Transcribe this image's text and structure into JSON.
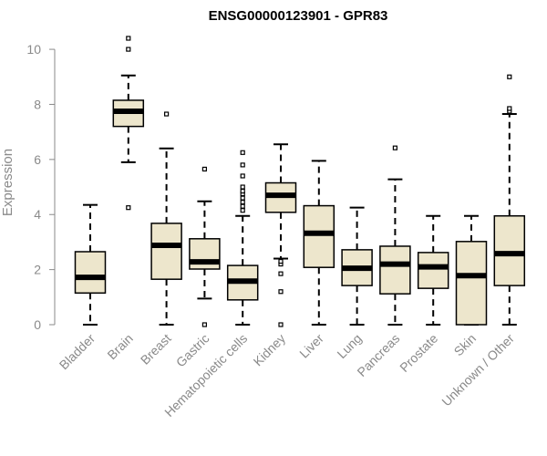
{
  "chart_data": {
    "type": "box",
    "title": "ENSG00000123901 - GPR83",
    "xlabel": "",
    "ylabel": "Expression",
    "ylim": [
      0,
      10.4
    ],
    "yticks": [
      0,
      2,
      4,
      6,
      8,
      10
    ],
    "grid": false,
    "colors": {
      "box_fill": "#ede6cc",
      "box_stroke": "#000000",
      "axis": "#8a8a8a"
    },
    "categories": [
      "Bladder",
      "Brain",
      "Breast",
      "Gastric",
      "Hematopoietic cells",
      "Kidney",
      "Liver",
      "Lung",
      "Pancreas",
      "Prostate",
      "Skin",
      "Unknown / Other"
    ],
    "boxes": [
      {
        "category": "Bladder",
        "whisker_low": 0.0,
        "q1": 1.15,
        "median": 1.72,
        "q3": 2.65,
        "whisker_high": 4.35,
        "outliers": []
      },
      {
        "category": "Brain",
        "whisker_low": 5.9,
        "q1": 7.2,
        "median": 7.75,
        "q3": 8.15,
        "whisker_high": 9.05,
        "outliers": [
          4.25,
          10.0,
          10.4
        ]
      },
      {
        "category": "Breast",
        "whisker_low": 0.0,
        "q1": 1.65,
        "median": 2.88,
        "q3": 3.68,
        "whisker_high": 6.4,
        "outliers": [
          7.65
        ]
      },
      {
        "category": "Gastric",
        "whisker_low": 0.95,
        "q1": 2.02,
        "median": 2.28,
        "q3": 3.12,
        "whisker_high": 4.48,
        "outliers": [
          0.0,
          5.65
        ]
      },
      {
        "category": "Hematopoietic cells",
        "whisker_low": 0.0,
        "q1": 0.9,
        "median": 1.58,
        "q3": 2.15,
        "whisker_high": 3.95,
        "outliers": [
          4.15,
          4.3,
          4.45,
          4.6,
          4.75,
          4.85,
          5.0,
          5.4,
          5.8,
          6.25
        ]
      },
      {
        "category": "Kidney",
        "whisker_low": 2.4,
        "q1": 4.08,
        "median": 4.7,
        "q3": 5.15,
        "whisker_high": 6.55,
        "outliers": [
          0.0,
          1.2,
          1.85,
          2.2,
          2.3
        ]
      },
      {
        "category": "Liver",
        "whisker_low": 0.0,
        "q1": 2.08,
        "median": 3.32,
        "q3": 4.32,
        "whisker_high": 5.95,
        "outliers": []
      },
      {
        "category": "Lung",
        "whisker_low": 0.0,
        "q1": 1.42,
        "median": 2.05,
        "q3": 2.72,
        "whisker_high": 4.25,
        "outliers": []
      },
      {
        "category": "Pancreas",
        "whisker_low": 0.0,
        "q1": 1.12,
        "median": 2.2,
        "q3": 2.85,
        "whisker_high": 5.28,
        "outliers": [
          6.42
        ]
      },
      {
        "category": "Prostate",
        "whisker_low": 0.0,
        "q1": 1.32,
        "median": 2.1,
        "q3": 2.62,
        "whisker_high": 3.95,
        "outliers": []
      },
      {
        "category": "Skin",
        "whisker_low": 0.0,
        "q1": 0.0,
        "median": 1.78,
        "q3": 3.02,
        "whisker_high": 3.95,
        "outliers": []
      },
      {
        "category": "Unknown / Other",
        "whisker_low": 0.0,
        "q1": 1.42,
        "median": 2.58,
        "q3": 3.95,
        "whisker_high": 7.65,
        "outliers": [
          7.75,
          7.85,
          9.0
        ]
      }
    ]
  }
}
